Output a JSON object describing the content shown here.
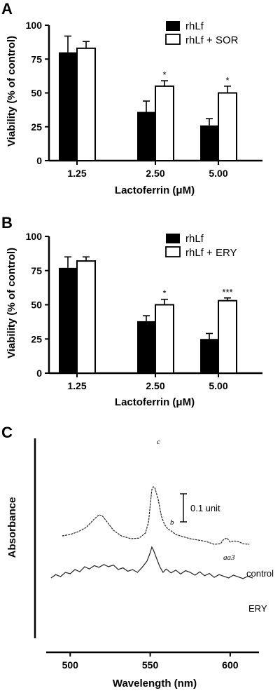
{
  "chart_data": [
    {
      "panel": "A",
      "type": "bar",
      "categories": [
        "1.25",
        "2.50",
        "5.00"
      ],
      "series": [
        {
          "name": "rhLf",
          "values": [
            80,
            36,
            26
          ],
          "errors": [
            12,
            8,
            5
          ],
          "fill": "#000000"
        },
        {
          "name": "rhLf + SOR",
          "values": [
            83,
            55,
            50
          ],
          "errors": [
            5,
            4,
            5
          ],
          "fill": "#ffffff"
        }
      ],
      "significance": [
        "",
        "*",
        "*"
      ],
      "xlabel": "Lactoferrin (μM)",
      "ylabel": "Viability (% of control)",
      "ylim": [
        0,
        100
      ],
      "yticks": [
        "0",
        "25",
        "50",
        "75",
        "100"
      ],
      "legend": "top-right"
    },
    {
      "panel": "B",
      "type": "bar",
      "categories": [
        "1.25",
        "2.50",
        "5.00"
      ],
      "series": [
        {
          "name": "rhLf",
          "values": [
            77,
            38,
            25
          ],
          "errors": [
            8,
            4,
            4
          ],
          "fill": "#000000"
        },
        {
          "name": "rhLf + ERY",
          "values": [
            82,
            50,
            53
          ],
          "errors": [
            3,
            4,
            2
          ],
          "fill": "#ffffff"
        }
      ],
      "significance": [
        "",
        "*",
        "***"
      ],
      "xlabel": "Lactoferrin (μM)",
      "ylabel": "Viability (% of control)",
      "ylim": [
        0,
        100
      ],
      "yticks": [
        "0",
        "25",
        "50",
        "75",
        "100"
      ],
      "legend": "top-right"
    },
    {
      "panel": "C",
      "type": "line",
      "xlabel": "Wavelength (nm)",
      "ylabel": "Absorbance",
      "xlim": [
        485,
        618
      ],
      "xticks": [
        "500",
        "550",
        "600"
      ],
      "scale_bar": "0.1 unit",
      "peak_labels": {
        "c": "c",
        "b": "b",
        "aa3": "aa3"
      },
      "series": [
        {
          "name": "control",
          "x": [
            495,
            500,
            505,
            510,
            515,
            518,
            520,
            523,
            527,
            532,
            538,
            543,
            547,
            549,
            550,
            551,
            552,
            553,
            555,
            557,
            559,
            561,
            563,
            566,
            570,
            575,
            580,
            585,
            590,
            594,
            596,
            598,
            600,
            602,
            605,
            608,
            612
          ],
          "y": [
            0.04,
            0.045,
            0.055,
            0.07,
            0.1,
            0.115,
            0.112,
            0.09,
            0.06,
            0.04,
            0.03,
            0.032,
            0.05,
            0.09,
            0.15,
            0.205,
            0.215,
            0.21,
            0.17,
            0.11,
            0.08,
            0.065,
            0.058,
            0.045,
            0.038,
            0.03,
            0.025,
            0.02,
            0.01,
            0.012,
            0.028,
            0.032,
            0.018,
            0.022,
            0.02,
            0.012,
            0.01
          ]
        },
        {
          "name": "ERY",
          "x": [
            488,
            491,
            494,
            497,
            500,
            503,
            506,
            509,
            512,
            515,
            518,
            521,
            524,
            527,
            530,
            533,
            536,
            539,
            542,
            545,
            548,
            550,
            551,
            552,
            554,
            556,
            558,
            560,
            563,
            566,
            569,
            572,
            575,
            578,
            581,
            584,
            587,
            590,
            593,
            596,
            599,
            602,
            605,
            608,
            611,
            614
          ],
          "y": [
            -0.11,
            -0.098,
            -0.105,
            -0.09,
            -0.095,
            -0.08,
            -0.088,
            -0.07,
            -0.078,
            -0.066,
            -0.072,
            -0.062,
            -0.07,
            -0.064,
            -0.08,
            -0.074,
            -0.086,
            -0.08,
            -0.09,
            -0.072,
            -0.05,
            -0.02,
            0.0,
            -0.01,
            -0.04,
            -0.07,
            -0.09,
            -0.078,
            -0.092,
            -0.082,
            -0.096,
            -0.084,
            -0.09,
            -0.1,
            -0.088,
            -0.102,
            -0.094,
            -0.108,
            -0.098,
            -0.104,
            -0.11,
            -0.1,
            -0.106,
            -0.112,
            -0.104,
            -0.11
          ]
        }
      ]
    }
  ]
}
